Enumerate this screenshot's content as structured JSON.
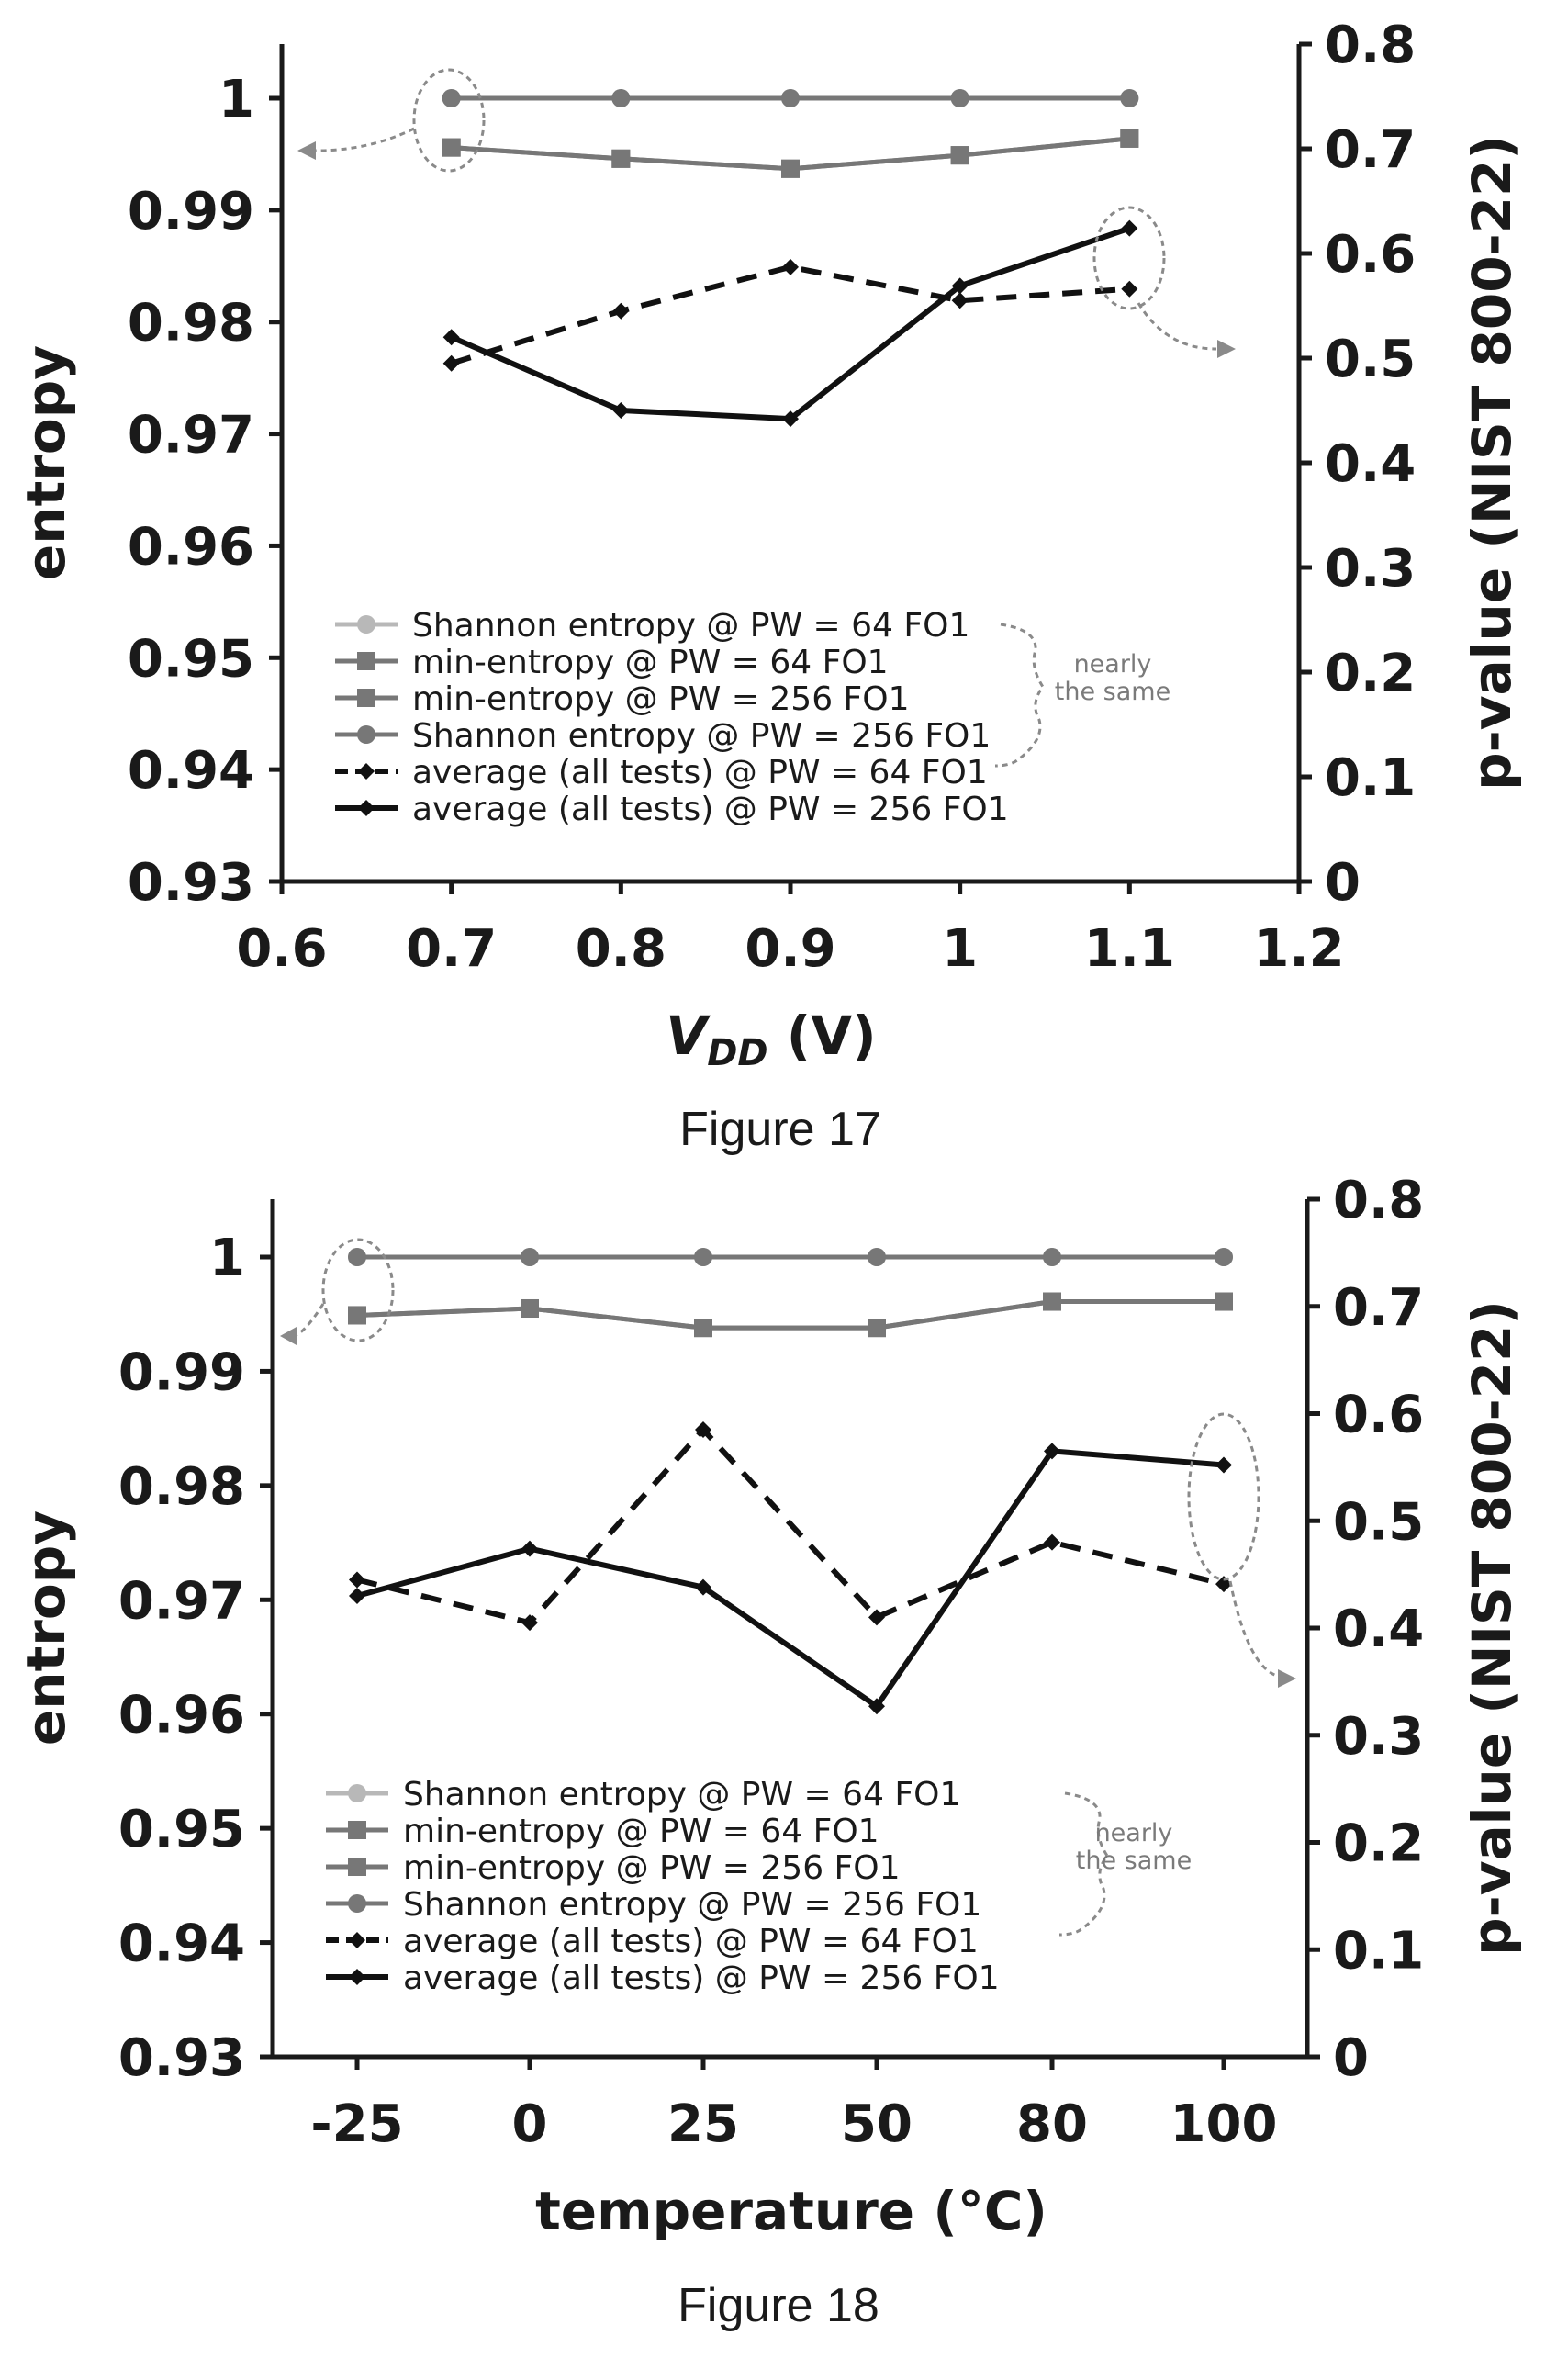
{
  "chart_data": [
    {
      "type": "line",
      "caption": "Figure 17",
      "xlabel_main": "V",
      "xlabel_sub": "DD",
      "xlabel_unit": " (V)",
      "ylabel": "entropy",
      "y2label": "p-value (NIST 800-22)",
      "xlim": [
        0.6,
        1.2
      ],
      "ylim": [
        0.93,
        1.005
      ],
      "y2lim": [
        0,
        0.8
      ],
      "xticks": [
        "0.6",
        "0.7",
        "0.8",
        "0.9",
        "1",
        "1.1",
        "1.2"
      ],
      "yticks": [
        "0.93",
        "0.94",
        "0.95",
        "0.96",
        "0.97",
        "0.98",
        "0.99",
        "1"
      ],
      "y2ticks": [
        "0",
        "0.1",
        "0.2",
        "0.3",
        "0.4",
        "0.5",
        "0.6",
        "0.7",
        "0.8"
      ],
      "x": [
        0.7,
        0.8,
        0.9,
        1.0,
        1.1
      ],
      "series": [
        {
          "name": "Shannon entropy @ PW = 64 FO1",
          "axis": "left",
          "values": [
            1.0,
            1.0,
            1.0,
            1.0,
            1.0
          ]
        },
        {
          "name": "min-entropy @ PW = 64 FO1",
          "axis": "left",
          "values": [
            0.9956,
            0.9946,
            0.9937,
            0.9949,
            0.9964
          ]
        },
        {
          "name": "min-entropy @ PW = 256 FO1",
          "axis": "left",
          "values": [
            0.9956,
            0.9946,
            0.9937,
            0.9949,
            0.9964
          ]
        },
        {
          "name": "Shannon entropy @ PW = 256 FO1",
          "axis": "left",
          "values": [
            1.0,
            1.0,
            1.0,
            1.0,
            1.0
          ]
        },
        {
          "name": "average (all tests) @ PW = 64 FO1",
          "axis": "right",
          "values": [
            0.495,
            0.545,
            0.587,
            0.555,
            0.566
          ]
        },
        {
          "name": "average (all tests) @ PW = 256 FO1",
          "axis": "right",
          "values": [
            0.52,
            0.45,
            0.442,
            0.569,
            0.624
          ]
        }
      ],
      "annotation": [
        "nearly",
        "the same"
      ]
    },
    {
      "type": "line",
      "caption": "Figure 18",
      "xlabel": "temperature (°C)",
      "ylabel": "entropy",
      "y2label": "p-value (NIST 800-22)",
      "ylim": [
        0.93,
        1.005
      ],
      "y2lim": [
        0,
        0.8
      ],
      "categories": [
        "-25",
        "0",
        "25",
        "50",
        "80",
        "100"
      ],
      "yticks": [
        "0.93",
        "0.94",
        "0.95",
        "0.96",
        "0.97",
        "0.98",
        "0.99",
        "1"
      ],
      "y2ticks": [
        "0",
        "0.1",
        "0.2",
        "0.3",
        "0.4",
        "0.5",
        "0.6",
        "0.7",
        "0.8"
      ],
      "series": [
        {
          "name": "Shannon entropy @ PW = 64 FO1",
          "axis": "left",
          "values": [
            1.0,
            1.0,
            1.0,
            1.0,
            1.0,
            1.0
          ]
        },
        {
          "name": "min-entropy @ PW = 64 FO1",
          "axis": "left",
          "values": [
            0.9949,
            0.9955,
            0.9938,
            0.9938,
            0.9961,
            0.9961
          ]
        },
        {
          "name": "min-entropy @ PW = 256 FO1",
          "axis": "left",
          "values": [
            0.9949,
            0.9955,
            0.9938,
            0.9938,
            0.9961,
            0.9961
          ]
        },
        {
          "name": "Shannon entropy @ PW = 256 FO1",
          "axis": "left",
          "values": [
            1.0,
            1.0,
            1.0,
            1.0,
            1.0,
            1.0
          ]
        },
        {
          "name": "average (all tests) @ PW = 64 FO1",
          "axis": "right",
          "values": [
            0.445,
            0.405,
            0.585,
            0.41,
            0.48,
            0.441
          ]
        },
        {
          "name": "average (all tests) @ PW = 256 FO1",
          "axis": "right",
          "values": [
            0.43,
            0.474,
            0.438,
            0.327,
            0.565,
            0.552
          ]
        }
      ],
      "annotation": [
        "nearly",
        "the same"
      ]
    }
  ],
  "styles": {
    "axis_color": "#1a1a1a",
    "entropy_color": "#777777",
    "pvalue_color": "#111111",
    "shannon64_color": "#b8b8b8",
    "annotation_color": "#8a8a8a"
  }
}
